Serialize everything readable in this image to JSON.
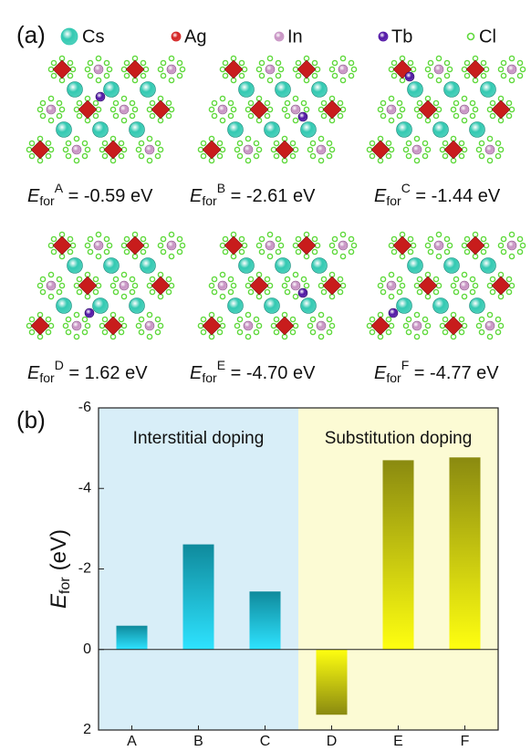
{
  "panel_a": {
    "label": "(a)",
    "legend": [
      {
        "name": "Cs",
        "color": "#33c9b2"
      },
      {
        "name": "Ag",
        "color": "#d42424"
      },
      {
        "name": "In",
        "color": "#c894c4"
      },
      {
        "name": "Tb",
        "color": "#5216a6"
      },
      {
        "name": "Cl",
        "color": "#5fd93c"
      }
    ],
    "structures": [
      {
        "symbol": "E",
        "subscript": "for",
        "superscript": "A",
        "text": " = -0.59 eV"
      },
      {
        "symbol": "E",
        "subscript": "for",
        "superscript": "B",
        "text": " = -2.61 eV"
      },
      {
        "symbol": "E",
        "subscript": "for",
        "superscript": "C",
        "text": " = -1.44 eV"
      },
      {
        "symbol": "E",
        "subscript": "for",
        "superscript": "D",
        "text": " = 1.62 eV"
      },
      {
        "symbol": "E",
        "subscript": "for",
        "superscript": "E",
        "text": " = -4.70 eV"
      },
      {
        "symbol": "E",
        "subscript": "for",
        "superscript": "F",
        "text": " = -4.77 eV"
      }
    ]
  },
  "chart_data": {
    "type": "bar",
    "label": "(b)",
    "y_label": {
      "symbol": "E",
      "subscript": "for",
      "unit": "(eV)"
    },
    "categories": [
      "A",
      "B",
      "C",
      "D",
      "E",
      "F"
    ],
    "values": [
      -0.59,
      -2.61,
      -1.44,
      1.62,
      -4.7,
      -4.77
    ],
    "ylim": [
      2,
      -6
    ],
    "yticks": [
      -6,
      -4,
      -2,
      0,
      2
    ],
    "regions": [
      {
        "label": "Interstitial doping",
        "from": "A",
        "to": "C",
        "color": "#d8eef8",
        "bar_colors": [
          "#0f8a9c",
          "#2ee3ff"
        ]
      },
      {
        "label": "Substitution doping",
        "from": "D",
        "to": "F",
        "color": "#fcfbd4",
        "bar_colors": [
          "#8a8a10",
          "#ffff10"
        ]
      }
    ]
  }
}
